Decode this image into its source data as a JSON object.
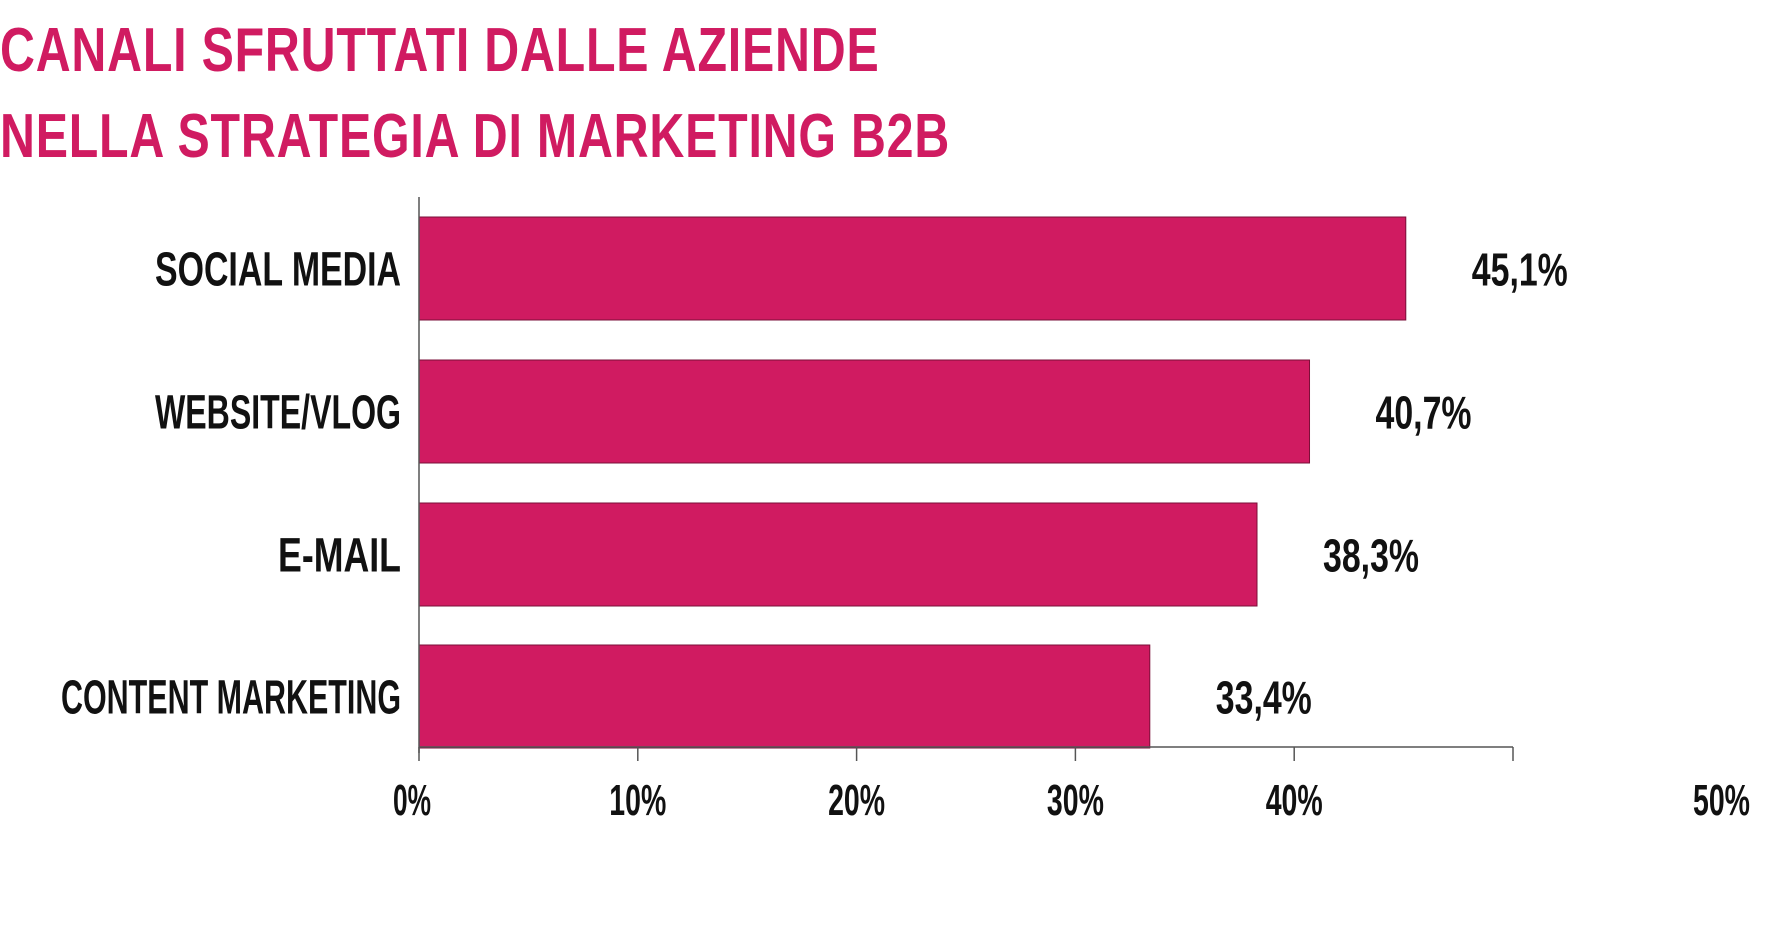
{
  "chart_data": {
    "type": "bar",
    "orientation": "horizontal",
    "title_lines": [
      "CANALI SFRUTTATI DALLE AZIENDE",
      "NELLA STRATEGIA DI MARKETING B2B"
    ],
    "categories": [
      "SOCIAL MEDIA",
      "WEBSITE/VLOG",
      "E-MAIL",
      "CONTENT MARKETING"
    ],
    "values": [
      45.1,
      40.7,
      38.3,
      33.4
    ],
    "value_labels": [
      "45,1%",
      "40,7%",
      "38,3%",
      "33,4%"
    ],
    "xlim": [
      0,
      50
    ],
    "x_ticks": [
      0,
      10,
      20,
      30,
      40,
      50
    ],
    "x_tick_labels": [
      "0%",
      "10%",
      "20%",
      "30%",
      "40%",
      "50%"
    ],
    "xlabel": "",
    "ylabel": "",
    "grid": false,
    "legend": "none",
    "bar_color": "#d01b61",
    "title_color": "#d01b61",
    "text_color": "#111111"
  }
}
